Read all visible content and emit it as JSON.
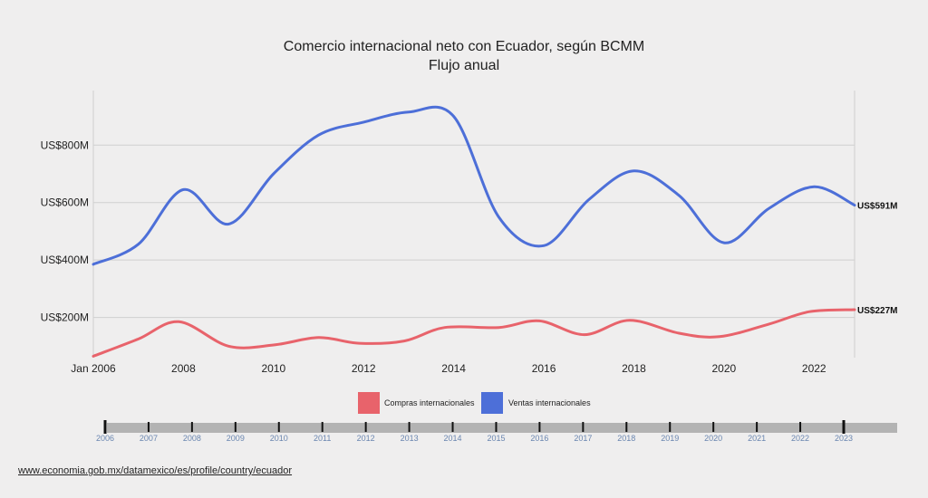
{
  "chart_data": {
    "type": "line",
    "title": "Comercio internacional neto con Ecuador, según BCMM",
    "subtitle": "Flujo anual",
    "y_ticks": [
      "US$200M",
      "US$400M",
      "US$600M",
      "US$800M"
    ],
    "y_tick_values": [
      200,
      400,
      600,
      800
    ],
    "ylim": [
      60,
      990
    ],
    "x_tick_labels": [
      "Jan 2006",
      "2008",
      "2010",
      "2012",
      "2014",
      "2016",
      "2018",
      "2020",
      "2022"
    ],
    "x_tick_values": [
      2006,
      2008,
      2010,
      2012,
      2014,
      2016,
      2018,
      2020,
      2022
    ],
    "xlim": [
      2006,
      2022.9
    ],
    "grid": true,
    "legend_position": "bottom",
    "series": [
      {
        "name": "Compras internacionales",
        "color": "#e8636b",
        "end_label": "US$227M",
        "x": [
          2006,
          2007,
          2007.9,
          2009,
          2010,
          2011,
          2011.9,
          2012.9,
          2013.8,
          2015,
          2015.9,
          2016.9,
          2017.9,
          2019,
          2019.9,
          2021,
          2021.9,
          2022.9
        ],
        "y": [
          65,
          125,
          185,
          100,
          104,
          130,
          110,
          118,
          165,
          165,
          188,
          140,
          190,
          145,
          133,
          177,
          220,
          227
        ]
      },
      {
        "name": "Ventas internacionales",
        "color": "#4d6fd8",
        "end_label": "US$591M",
        "x": [
          2006,
          2007,
          2008,
          2009,
          2010,
          2011,
          2012,
          2013,
          2014,
          2015,
          2016,
          2017,
          2018,
          2019,
          2020,
          2021,
          2022,
          2022.9
        ],
        "y": [
          385,
          455,
          645,
          525,
          700,
          835,
          880,
          915,
          900,
          550,
          450,
          610,
          710,
          625,
          460,
          580,
          655,
          591
        ]
      }
    ]
  },
  "timeline": {
    "years": [
      "2006",
      "2007",
      "2008",
      "2009",
      "2010",
      "2011",
      "2012",
      "2013",
      "2014",
      "2015",
      "2016",
      "2017",
      "2018",
      "2019",
      "2020",
      "2021",
      "2022",
      "2023"
    ]
  },
  "source": {
    "url_text": "www.economia.gob.mx/datamexico/es/profile/country/ecuador"
  }
}
